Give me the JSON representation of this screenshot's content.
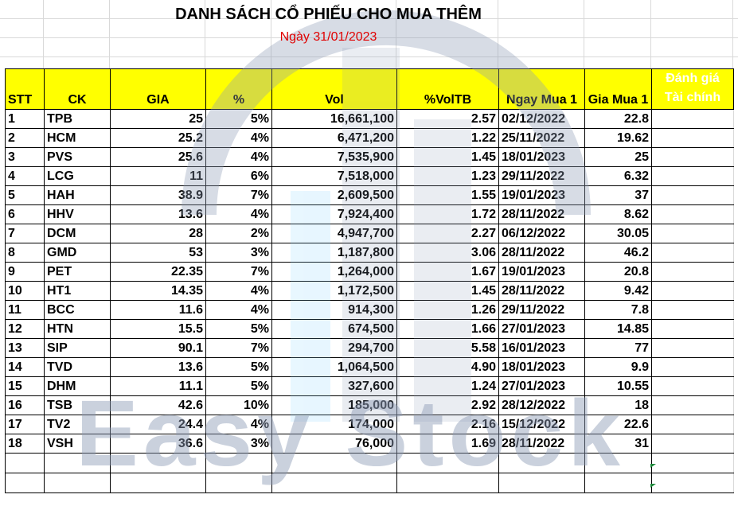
{
  "title": "DANH SÁCH CỔ PHIẾU CHO MUA THÊM",
  "subtitle": "Ngày 31/01/2023",
  "watermark_text": "Easy Stock",
  "colors": {
    "header_bg": "#ffff00",
    "subtitle": "#e00000",
    "watermark": "#a8b3c8"
  },
  "columns": [
    "STT",
    "CK",
    "GIA",
    "%",
    "Vol",
    "%VolTB",
    "Ngay Mua 1",
    "Gia Mua 1",
    "Đánh giá Tài chính"
  ],
  "rows": [
    [
      "1",
      "TPB",
      "25",
      "5%",
      "16,661,100",
      "2.57",
      "02/12/2022",
      "22.8"
    ],
    [
      "2",
      "HCM",
      "25.2",
      "4%",
      "6,471,200",
      "1.22",
      "25/11/2022",
      "19.62"
    ],
    [
      "3",
      "PVS",
      "25.6",
      "4%",
      "7,535,900",
      "1.45",
      "18/01/2023",
      "25"
    ],
    [
      "4",
      "LCG",
      "11",
      "6%",
      "7,518,000",
      "1.23",
      "29/11/2022",
      "6.32"
    ],
    [
      "5",
      "HAH",
      "38.9",
      "7%",
      "2,609,500",
      "1.55",
      "19/01/2023",
      "37"
    ],
    [
      "6",
      "HHV",
      "13.6",
      "4%",
      "7,924,400",
      "1.72",
      "28/11/2022",
      "8.62"
    ],
    [
      "7",
      "DCM",
      "28",
      "2%",
      "4,947,700",
      "2.27",
      "06/12/2022",
      "30.05"
    ],
    [
      "8",
      "GMD",
      "53",
      "3%",
      "1,187,800",
      "3.06",
      "28/11/2022",
      "46.2"
    ],
    [
      "9",
      "PET",
      "22.35",
      "7%",
      "1,264,000",
      "1.67",
      "19/01/2023",
      "20.8"
    ],
    [
      "10",
      "HT1",
      "14.35",
      "4%",
      "1,172,500",
      "1.45",
      "28/11/2022",
      "9.42"
    ],
    [
      "11",
      "BCC",
      "11.6",
      "4%",
      "914,300",
      "1.26",
      "29/11/2022",
      "7.8"
    ],
    [
      "12",
      "HTN",
      "15.5",
      "5%",
      "674,500",
      "1.66",
      "27/01/2023",
      "14.85"
    ],
    [
      "13",
      "SIP",
      "90.1",
      "7%",
      "294,700",
      "5.58",
      "16/01/2023",
      "77"
    ],
    [
      "14",
      "TVD",
      "13.6",
      "5%",
      "1,064,500",
      "4.90",
      "18/01/2023",
      "9.9"
    ],
    [
      "15",
      "DHM",
      "11.1",
      "5%",
      "327,600",
      "1.24",
      "27/01/2023",
      "10.55"
    ],
    [
      "16",
      "TSB",
      "42.6",
      "10%",
      "185,000",
      "2.92",
      "28/12/2022",
      "18"
    ],
    [
      "17",
      "TV2",
      "24.4",
      "4%",
      "174,000",
      "2.16",
      "15/12/2022",
      "22.6"
    ],
    [
      "18",
      "VSH",
      "36.6",
      "3%",
      "76,000",
      "1.69",
      "28/11/2022",
      "31"
    ]
  ]
}
